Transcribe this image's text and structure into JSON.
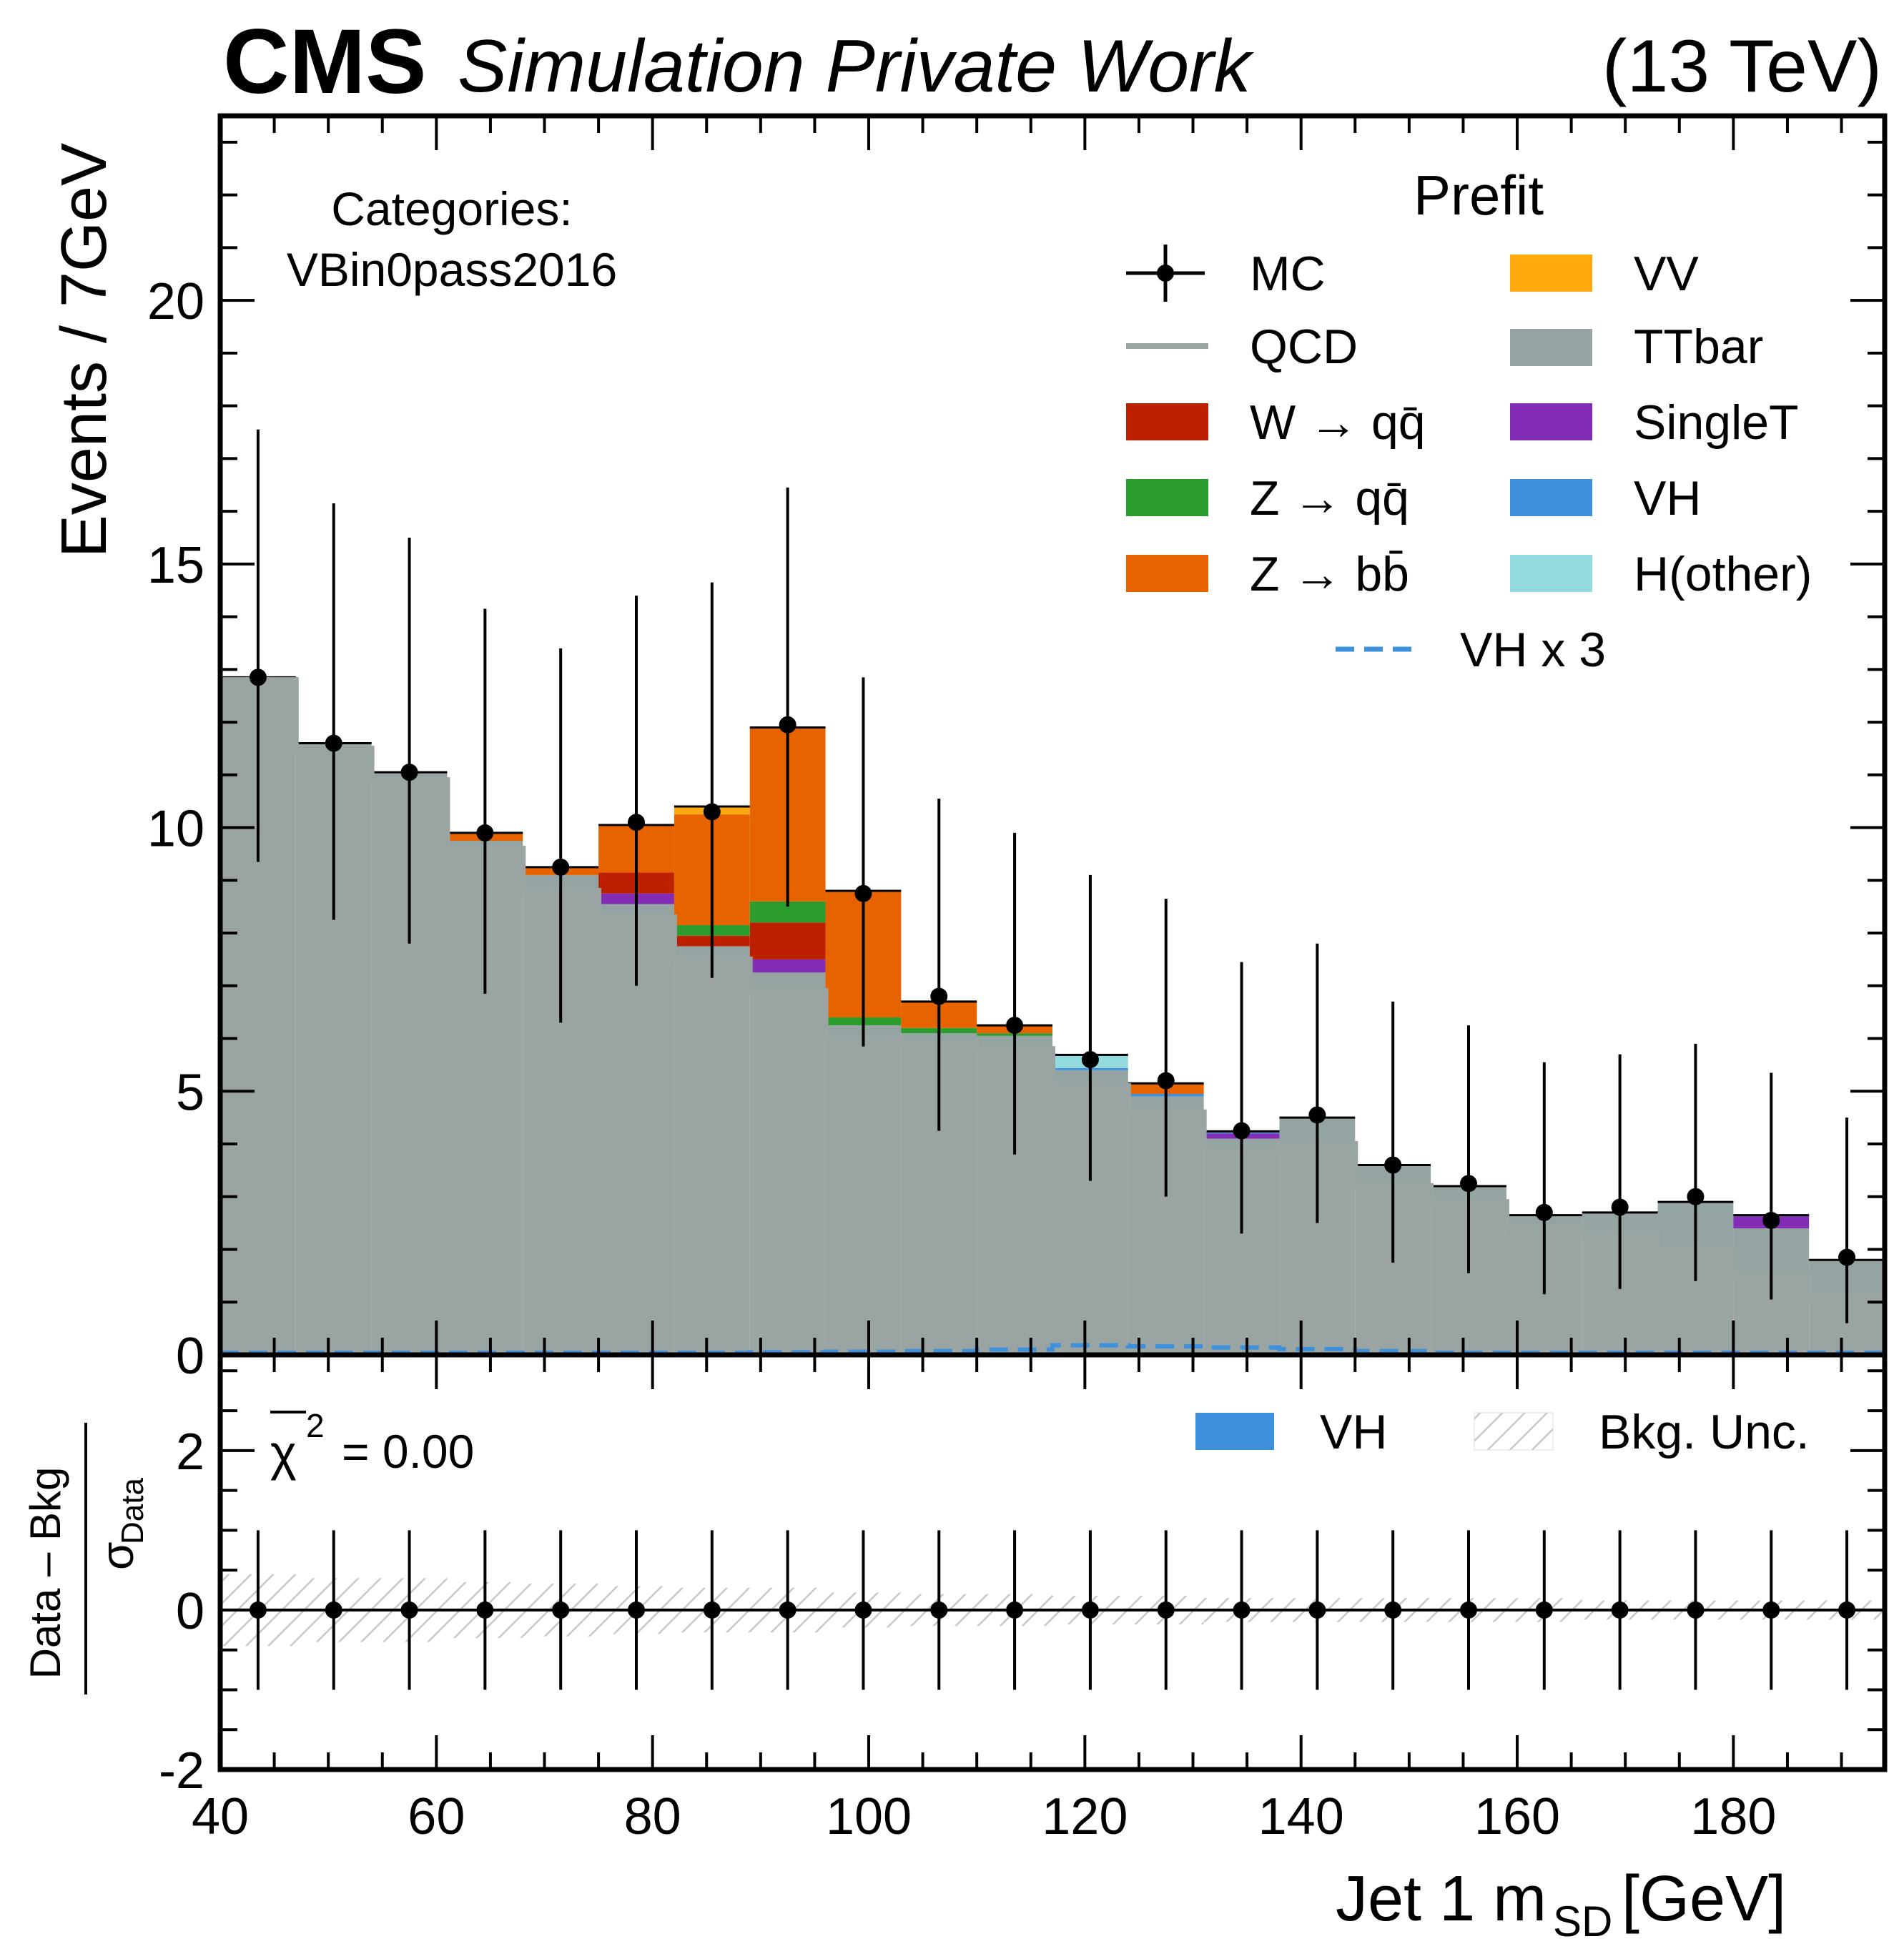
{
  "header": {
    "experiment": "CMS",
    "subtitle": "Simulation Private Work",
    "energy": "(13 TeV)"
  },
  "category": {
    "line1": "Categories:",
    "line2": "VBin0pass2016"
  },
  "legend": {
    "title": "Prefit",
    "entries": [
      {
        "key": "mc",
        "label": "MC",
        "kind": "marker",
        "color": "#000000"
      },
      {
        "key": "qcd",
        "label": "QCD",
        "kind": "line",
        "color": "#9aa5a3"
      },
      {
        "key": "wqq",
        "label": "W → qq̄",
        "kind": "box",
        "color": "#bd1f01"
      },
      {
        "key": "zqq",
        "label": "Z → qq̄",
        "kind": "box",
        "color": "#2a9d2e"
      },
      {
        "key": "zbb",
        "label": "Z → bb̄",
        "kind": "box",
        "color": "#e76300"
      },
      {
        "key": "vv",
        "label": "VV",
        "kind": "box",
        "color": "#ffa90e"
      },
      {
        "key": "ttbar",
        "label": "TTbar",
        "kind": "box",
        "color": "#94a4a2"
      },
      {
        "key": "singlet",
        "label": "SingleT",
        "kind": "box",
        "color": "#832db6"
      },
      {
        "key": "vh",
        "label": "VH",
        "kind": "box",
        "color": "#3f90da"
      },
      {
        "key": "hother",
        "label": "H(other)",
        "kind": "box",
        "color": "#92dadd"
      },
      {
        "key": "vh3",
        "label": "VH x 3",
        "kind": "dashed",
        "color": "#3f90da"
      }
    ]
  },
  "ratio_legend": {
    "vh": "VH",
    "unc": "Bkg. Unc.",
    "chi2_symbol": "χ",
    "chi2_sup": "2",
    "chi2_value": "= 0.00"
  },
  "chart_data": {
    "type": "bar",
    "stacked": true,
    "bin_edges": [
      40,
      47,
      54,
      61,
      68,
      75,
      82,
      89,
      96,
      103,
      110,
      117,
      124,
      131,
      138,
      145,
      152,
      159,
      166,
      173,
      180,
      187,
      194
    ],
    "series": [
      {
        "name": "QCD",
        "color": "#9aa5a3",
        "style": "line",
        "values": [
          12.8,
          11.5,
          10.9,
          9.6,
          8.8,
          8.3,
          7.5,
          6.9,
          6.0,
          5.9,
          5.8,
          5.1,
          4.6,
          3.9,
          4.0,
          3.2,
          2.9,
          2.4,
          2.3,
          2.0,
          1.5,
          1.1
        ]
      },
      {
        "name": "TTbar",
        "color": "#94a4a2",
        "values": [
          0.05,
          0.1,
          0.15,
          0.15,
          0.3,
          0.25,
          0.25,
          0.35,
          0.25,
          0.2,
          0.25,
          0.3,
          0.3,
          0.2,
          0.5,
          0.4,
          0.3,
          0.25,
          0.4,
          0.9,
          0.9,
          0.7
        ]
      },
      {
        "name": "SingleT",
        "color": "#832db6",
        "values": [
          0,
          0,
          0,
          0,
          0,
          0.2,
          0,
          0.25,
          0,
          0,
          0,
          0,
          0,
          0.1,
          0,
          0,
          0,
          0,
          0,
          0,
          0.25,
          0
        ]
      },
      {
        "name": "VH",
        "color": "#3f90da",
        "values": [
          0,
          0,
          0,
          0,
          0,
          0,
          0,
          0,
          0,
          0,
          0,
          0.04,
          0.05,
          0.04,
          0,
          0,
          0,
          0,
          0,
          0,
          0,
          0
        ]
      },
      {
        "name": "H(other)",
        "color": "#92dadd",
        "values": [
          0,
          0,
          0,
          0,
          0,
          0,
          0,
          0,
          0,
          0,
          0,
          0.25,
          0,
          0,
          0,
          0,
          0,
          0,
          0,
          0,
          0,
          0
        ]
      },
      {
        "name": "W → qq̄",
        "color": "#bd1f01",
        "values": [
          0,
          0,
          0,
          0,
          0,
          0.4,
          0.2,
          0.7,
          0,
          0,
          0,
          0,
          0,
          0,
          0,
          0,
          0,
          0,
          0,
          0,
          0,
          0
        ]
      },
      {
        "name": "Z → qq̄",
        "color": "#2a9d2e",
        "values": [
          0,
          0,
          0,
          0,
          0,
          0,
          0.2,
          0.4,
          0.15,
          0.1,
          0.05,
          0,
          0,
          0,
          0,
          0,
          0,
          0,
          0,
          0,
          0,
          0
        ]
      },
      {
        "name": "Z → bb̄",
        "color": "#e76300",
        "values": [
          0,
          0,
          0,
          0.15,
          0.15,
          0.9,
          2.1,
          3.3,
          2.4,
          0.5,
          0.15,
          0,
          0.2,
          0,
          0,
          0,
          0,
          0,
          0,
          0,
          0,
          0
        ]
      },
      {
        "name": "VV",
        "color": "#ffa90e",
        "values": [
          0,
          0,
          0,
          0,
          0,
          0,
          0.15,
          0,
          0,
          0,
          0,
          0,
          0,
          0,
          0,
          0,
          0,
          0,
          0,
          0,
          0,
          0
        ]
      }
    ],
    "vh_x3": [
      0,
      0,
      0,
      0,
      0,
      0,
      0,
      0.01,
      0.02,
      0.03,
      0.06,
      0.14,
      0.12,
      0.1,
      0.07,
      0.03,
      0,
      0,
      0,
      0,
      0,
      0
    ],
    "mc": {
      "name": "MC",
      "x": [
        43.5,
        50.5,
        57.5,
        64.5,
        71.5,
        78.5,
        85.5,
        92.5,
        99.5,
        106.5,
        113.5,
        120.5,
        127.5,
        134.5,
        141.5,
        148.5,
        155.5,
        162.5,
        169.5,
        176.5,
        183.5,
        190.5
      ],
      "y": [
        12.85,
        11.6,
        11.05,
        9.9,
        9.25,
        10.1,
        10.3,
        11.95,
        8.75,
        6.8,
        6.25,
        5.6,
        5.2,
        4.25,
        4.55,
        3.6,
        3.25,
        2.7,
        2.8,
        3.0,
        2.55,
        1.85
      ],
      "yerr_low": [
        3.5,
        3.35,
        3.25,
        3.05,
        2.95,
        3.1,
        3.15,
        3.45,
        2.9,
        2.55,
        2.45,
        2.3,
        2.2,
        1.95,
        2.05,
        1.85,
        1.7,
        1.55,
        1.55,
        1.6,
        1.5,
        1.25
      ],
      "yerr_high": [
        4.7,
        4.55,
        4.45,
        4.25,
        4.15,
        4.3,
        4.35,
        4.5,
        4.1,
        3.75,
        3.65,
        3.5,
        3.45,
        3.2,
        3.25,
        3.1,
        3.0,
        2.85,
        2.9,
        2.9,
        2.8,
        2.65
      ]
    },
    "ratio": {
      "values": [
        0,
        0,
        0,
        0,
        0,
        0,
        0,
        0,
        0,
        0,
        0,
        0,
        0,
        0,
        0,
        0,
        0,
        0,
        0,
        0,
        0,
        0
      ],
      "yerr": [
        1,
        1,
        1,
        1,
        1,
        1,
        1,
        1,
        1,
        1,
        1,
        1,
        1,
        1,
        1,
        1,
        1,
        1,
        1,
        1,
        1,
        1
      ],
      "unc_band": [
        0.45,
        0.4,
        0.4,
        0.35,
        0.33,
        0.3,
        0.28,
        0.28,
        0.22,
        0.2,
        0.2,
        0.18,
        0.18,
        0.15,
        0.15,
        0.15,
        0.15,
        0.15,
        0.12,
        0.12,
        0.12,
        0.12
      ]
    },
    "xlim": [
      40,
      194
    ],
    "ylim": [
      0,
      23.5
    ],
    "ratio_ylim": [
      -2,
      3.2
    ],
    "xticks": [
      "40",
      "60",
      "80",
      "100",
      "120",
      "140",
      "160",
      "180"
    ],
    "yticks": [
      "0",
      "5",
      "10",
      "15",
      "20"
    ],
    "ratio_yticks": [
      "-2",
      "0",
      "2"
    ],
    "xlabel": "Jet 1 m",
    "xlabel_sub": "SD",
    "xlabel_unit": " [GeV]",
    "ylabel": "Events / 7GeV",
    "ratio_ylabel_num": "Data – Bkg",
    "ratio_ylabel_den": "σ",
    "ratio_ylabel_den_sub": "Data"
  }
}
